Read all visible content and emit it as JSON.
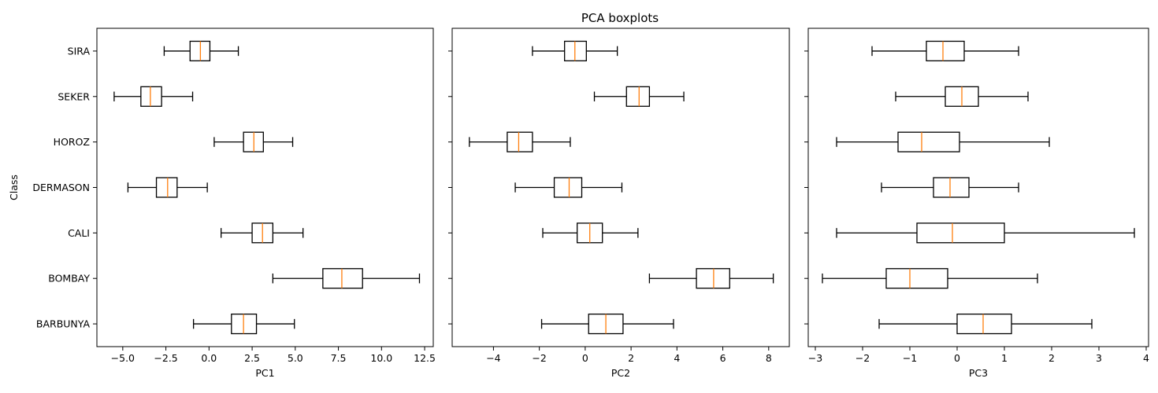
{
  "figure_title": "PCA boxplots",
  "colors": {
    "box": "#000000",
    "median": "#ff7f0e",
    "frame": "#000000",
    "background": "#ffffff"
  },
  "chart_data": [
    {
      "type": "boxplot",
      "orientation": "horizontal",
      "xlabel": "PC1",
      "ylabel": "Class",
      "xlim": [
        -6.5,
        13.0
      ],
      "xticks": [
        -5.0,
        -2.5,
        0.0,
        2.5,
        5.0,
        7.5,
        10.0,
        12.5
      ],
      "xtick_labels": [
        "−5.0",
        "−2.5",
        "0.0",
        "2.5",
        "5.0",
        "7.5",
        "10.0",
        "12.5"
      ],
      "categories": [
        "BARBUNYA",
        "BOMBAY",
        "CALI",
        "DERMASON",
        "HOROZ",
        "SEKER",
        "SIRA"
      ],
      "boxes": [
        {
          "whislo": -0.9,
          "q1": 1.3,
          "med": 2.0,
          "q3": 2.75,
          "whishi": 4.95
        },
        {
          "whislo": 3.7,
          "q1": 6.6,
          "med": 7.7,
          "q3": 8.9,
          "whishi": 12.2
        },
        {
          "whislo": 0.7,
          "q1": 2.5,
          "med": 3.1,
          "q3": 3.7,
          "whishi": 5.45
        },
        {
          "whislo": -4.7,
          "q1": -3.05,
          "med": -2.4,
          "q3": -1.85,
          "whishi": -0.1
        },
        {
          "whislo": 0.3,
          "q1": 2.0,
          "med": 2.6,
          "q3": 3.15,
          "whishi": 4.85
        },
        {
          "whislo": -5.5,
          "q1": -3.95,
          "med": -3.4,
          "q3": -2.75,
          "whishi": -0.95
        },
        {
          "whislo": -2.6,
          "q1": -1.1,
          "med": -0.5,
          "q3": 0.05,
          "whishi": 1.7
        }
      ]
    },
    {
      "type": "boxplot",
      "orientation": "horizontal",
      "xlabel": "PC2",
      "ylabel": "",
      "xlim": [
        -5.8,
        8.9
      ],
      "xticks": [
        -4,
        -2,
        0,
        2,
        4,
        6,
        8
      ],
      "xtick_labels": [
        "−4",
        "−2",
        "0",
        "2",
        "4",
        "6",
        "8"
      ],
      "categories": [
        "BARBUNYA",
        "BOMBAY",
        "CALI",
        "DERMASON",
        "HOROZ",
        "SEKER",
        "SIRA"
      ],
      "boxes": [
        {
          "whislo": -1.9,
          "q1": 0.15,
          "med": 0.9,
          "q3": 1.65,
          "whishi": 3.85
        },
        {
          "whislo": 2.8,
          "q1": 4.85,
          "med": 5.6,
          "q3": 6.3,
          "whishi": 8.2
        },
        {
          "whislo": -1.85,
          "q1": -0.35,
          "med": 0.2,
          "q3": 0.75,
          "whishi": 2.3
        },
        {
          "whislo": -3.05,
          "q1": -1.35,
          "med": -0.7,
          "q3": -0.15,
          "whishi": 1.6
        },
        {
          "whislo": -5.05,
          "q1": -3.4,
          "med": -2.9,
          "q3": -2.3,
          "whishi": -0.65
        },
        {
          "whislo": 0.4,
          "q1": 1.8,
          "med": 2.35,
          "q3": 2.8,
          "whishi": 4.3
        },
        {
          "whislo": -2.3,
          "q1": -0.9,
          "med": -0.45,
          "q3": 0.05,
          "whishi": 1.4
        }
      ]
    },
    {
      "type": "boxplot",
      "orientation": "horizontal",
      "xlabel": "PC3",
      "ylabel": "",
      "xlim": [
        -3.15,
        4.05
      ],
      "xticks": [
        -3,
        -2,
        -1,
        0,
        1,
        2,
        3,
        4
      ],
      "xtick_labels": [
        "−3",
        "−2",
        "−1",
        "0",
        "1",
        "2",
        "3",
        "4"
      ],
      "categories": [
        "BARBUNYA",
        "BOMBAY",
        "CALI",
        "DERMASON",
        "HOROZ",
        "SEKER",
        "SIRA"
      ],
      "boxes": [
        {
          "whislo": -1.65,
          "q1": 0.0,
          "med": 0.55,
          "q3": 1.15,
          "whishi": 2.85
        },
        {
          "whislo": -2.85,
          "q1": -1.5,
          "med": -1.0,
          "q3": -0.2,
          "whishi": 1.7
        },
        {
          "whislo": -2.55,
          "q1": -0.85,
          "med": -0.1,
          "q3": 1.0,
          "whishi": 3.75
        },
        {
          "whislo": -1.6,
          "q1": -0.5,
          "med": -0.15,
          "q3": 0.25,
          "whishi": 1.3
        },
        {
          "whislo": -2.55,
          "q1": -1.25,
          "med": -0.75,
          "q3": 0.05,
          "whishi": 1.95
        },
        {
          "whislo": -1.3,
          "q1": -0.25,
          "med": 0.1,
          "q3": 0.45,
          "whishi": 1.5
        },
        {
          "whislo": -1.8,
          "q1": -0.65,
          "med": -0.3,
          "q3": 0.15,
          "whishi": 1.3
        }
      ]
    }
  ]
}
